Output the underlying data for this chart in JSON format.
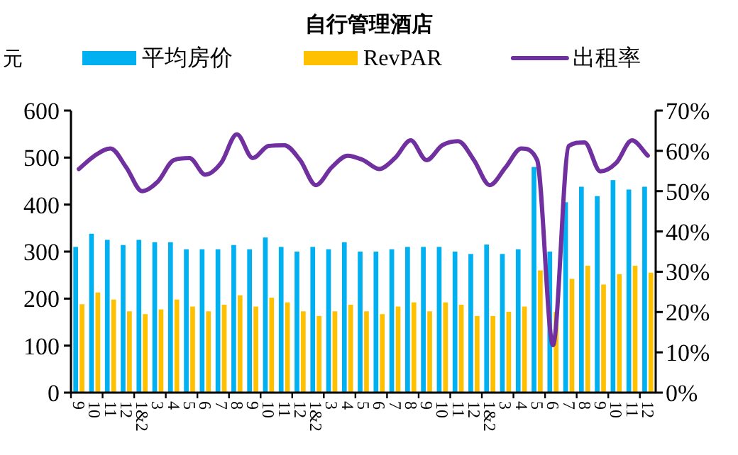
{
  "chart_data": {
    "type": "bar",
    "title": "自行管理酒店",
    "ylabel": "元",
    "categories": [
      "9",
      "10",
      "11",
      "12",
      "1&2",
      "3",
      "4",
      "5",
      "6",
      "7",
      "8",
      "9",
      "10",
      "11",
      "12",
      "1&2",
      "3",
      "4",
      "5",
      "6",
      "7",
      "8",
      "9",
      "10",
      "11",
      "12",
      "1&2",
      "3",
      "4",
      "5",
      "6",
      "7",
      "8",
      "9",
      "10",
      "11",
      "12"
    ],
    "series": [
      {
        "name": "平均房价",
        "color": "#00b0f0",
        "values": [
          310,
          338,
          325,
          314,
          325,
          320,
          320,
          305,
          305,
          305,
          314,
          305,
          330,
          310,
          300,
          310,
          305,
          320,
          300,
          300,
          305,
          310,
          310,
          310,
          300,
          295,
          315,
          295,
          305,
          480,
          300,
          405,
          438,
          418,
          452,
          432,
          438
        ]
      },
      {
        "name": "RevPAR",
        "color": "#ffc000",
        "values": [
          188,
          213,
          198,
          173,
          167,
          177,
          198,
          183,
          173,
          187,
          207,
          183,
          202,
          192,
          173,
          163,
          173,
          187,
          173,
          167,
          183,
          192,
          173,
          192,
          187,
          163,
          163,
          172,
          183,
          260,
          172,
          242,
          270,
          230,
          252,
          270,
          255
        ]
      },
      {
        "name": "出租率",
        "type": "line",
        "axis": "y2",
        "color": "#7030a0",
        "values": [
          55.5,
          58.8,
          60.6,
          55.9,
          50.0,
          52.4,
          57.7,
          58.2,
          54.1,
          57.0,
          64.1,
          58.2,
          61.2,
          61.4,
          57.7,
          51.5,
          55.9,
          58.8,
          57.7,
          55.5,
          58.2,
          62.6,
          57.7,
          61.4,
          62.4,
          57.7,
          51.5,
          55.9,
          60.6,
          57.7,
          11.8,
          61.2,
          62.1,
          54.9,
          57.0,
          62.6,
          58.8
        ]
      }
    ],
    "ylim": [
      0,
      600
    ],
    "yticks": [
      0,
      100,
      200,
      300,
      400,
      500,
      600
    ],
    "y2lim": [
      0,
      70
    ],
    "y2ticks": [
      {
        "value": 0,
        "label": "0%"
      },
      {
        "value": 10,
        "label": "10%"
      },
      {
        "value": 20,
        "label": "20%"
      },
      {
        "value": 30,
        "label": "30%"
      },
      {
        "value": 40,
        "label": "40%"
      },
      {
        "value": 50,
        "label": "50%"
      },
      {
        "value": 60,
        "label": "60%"
      },
      {
        "value": 70,
        "label": "70%"
      }
    ],
    "legend": "top",
    "grid": false
  }
}
